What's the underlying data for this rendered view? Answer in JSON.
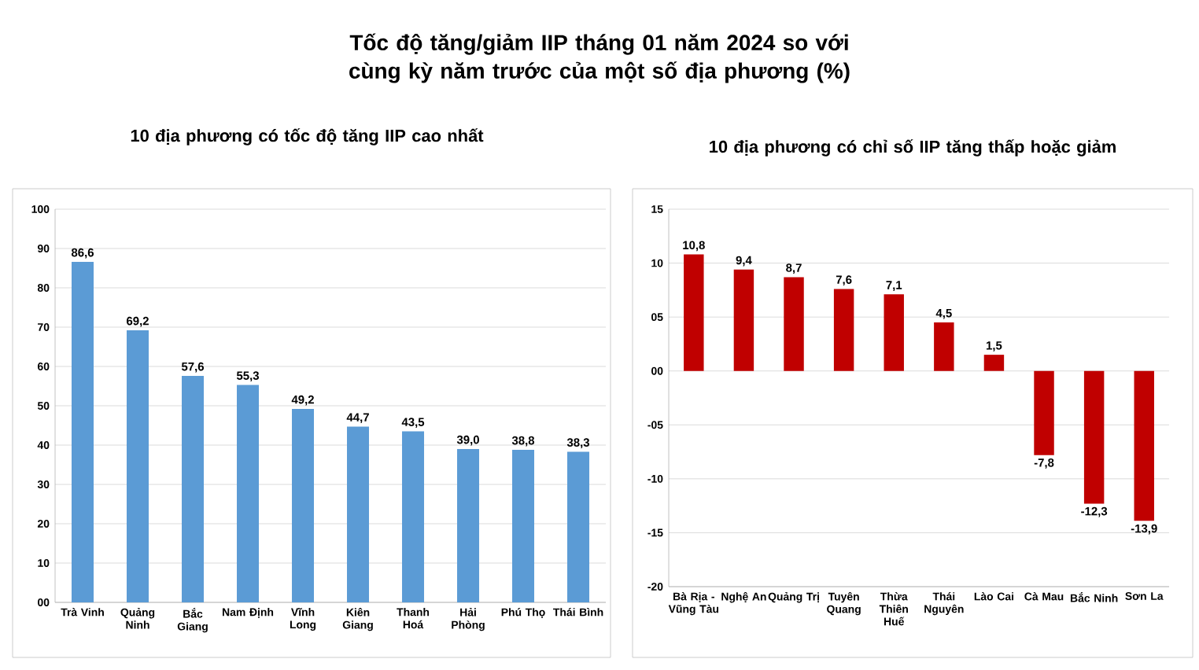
{
  "chart_data": [
    {
      "type": "bar",
      "title": "Tốc độ tăng/giảm IIP tháng 01 năm 2024 so với cùng kỳ năm trước của một số địa phương (%)",
      "subtitle": "10 địa phương có tốc độ tăng IIP cao nhất",
      "categories": [
        "Trà Vinh",
        "Quảng Ninh",
        "Bắc Giang",
        "Nam Định",
        "Vĩnh Long",
        "Kiên Giang",
        "Thanh Hoá",
        "Hải Phòng",
        "Phú Thọ",
        "Thái Bình"
      ],
      "values": [
        86.6,
        69.2,
        57.6,
        55.3,
        49.2,
        44.7,
        43.5,
        39.0,
        38.8,
        38.3
      ],
      "value_labels": [
        "86,6",
        "69,2",
        "57,6",
        "55,3",
        "49,2",
        "44,7",
        "43,5",
        "39,0",
        "38,8",
        "38,3"
      ],
      "color": "#5b9bd5",
      "ylim": [
        0,
        100
      ],
      "yticks": [
        {
          "value": 0,
          "label": "00"
        },
        10,
        20,
        30,
        40,
        50,
        60,
        70,
        80,
        90,
        100
      ],
      "grid": "y"
    },
    {
      "type": "bar",
      "title": "10 địa phương có chỉ số IIP tăng thấp hoặc giảm",
      "categories": [
        "Bà Rịa - Vũng Tàu",
        "Nghệ An",
        "Quảng Trị",
        "Tuyên Quang",
        "Thừa Thiên Huế",
        "Thái Nguyên",
        "Lào Cai",
        "Cà Mau",
        "Bắc Ninh",
        "Sơn La"
      ],
      "values": [
        10.8,
        9.4,
        8.7,
        7.6,
        7.1,
        4.5,
        1.5,
        -7.8,
        -12.3,
        -13.9
      ],
      "value_labels": [
        "10,8",
        "9,4",
        "8,7",
        "7,6",
        "7,1",
        "4,5",
        "1,5",
        "-7,8",
        "-12,3",
        "-13,9"
      ],
      "color": "#c00000",
      "ylim": [
        -20,
        15
      ],
      "yticks": [
        -20,
        -15,
        -10,
        {
          "value": -5,
          "label": "-05"
        },
        {
          "value": 0,
          "label": "00"
        },
        {
          "value": 5,
          "label": "05"
        },
        10,
        15
      ],
      "grid": "y"
    }
  ]
}
